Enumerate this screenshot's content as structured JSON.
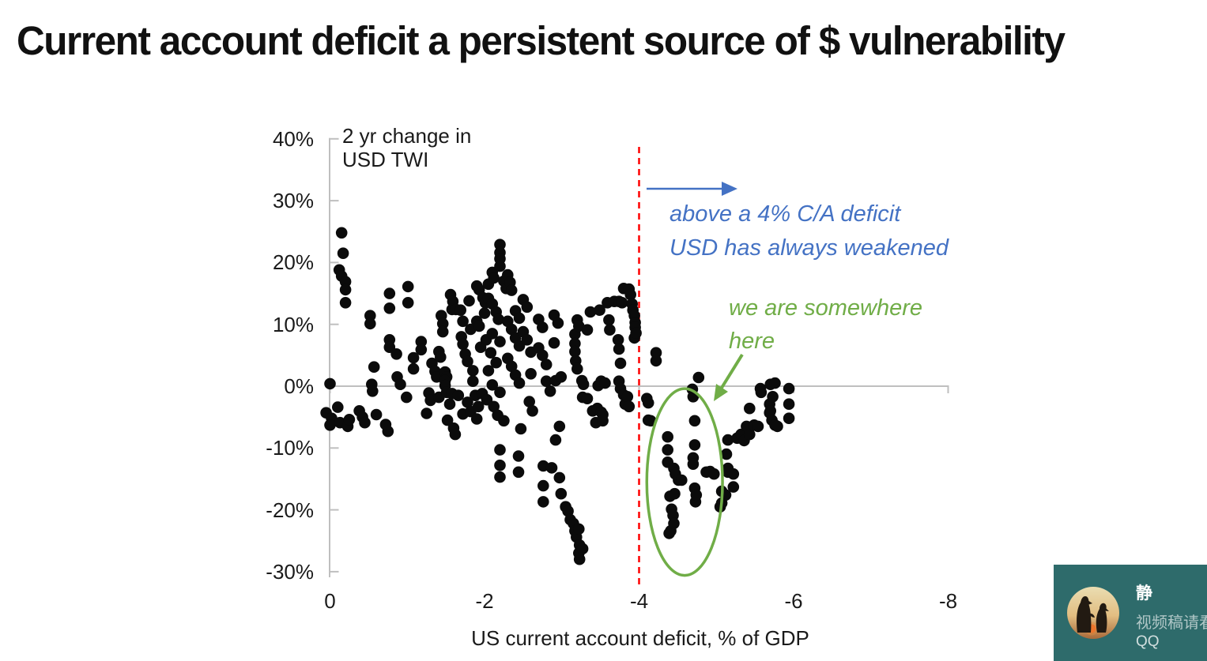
{
  "title": "Current account deficit a persistent source of $ vulnerability",
  "colors": {
    "accent_blue": "#4472C4",
    "accent_green": "#70AD47",
    "reference_red": "#FF0000",
    "axis_gray": "#BFBFBF",
    "point_black": "#0B0B0B",
    "overlay_teal": "#2E6B6B"
  },
  "chart_data": {
    "type": "scatter",
    "title": "",
    "ylabel": "2 yr change in\nUSD TWI",
    "ylabel_line1": "2 yr change in",
    "ylabel_line2": "USD TWI",
    "xlabel": "US current account deficit, % of GDP",
    "xlim": [
      0,
      -8
    ],
    "ylim": [
      40,
      -30
    ],
    "grid": false,
    "legend": "none",
    "x_ticks": [
      0,
      -2,
      -4,
      -6,
      -8
    ],
    "y_tick_labels": [
      "40%",
      "30%",
      "20%",
      "10%",
      "0%",
      "-10%",
      "-20%",
      "-30%"
    ],
    "y_tick_values": [
      40,
      30,
      20,
      10,
      0,
      -10,
      -20,
      -30
    ],
    "reference_line": {
      "x": -4,
      "color": "#FF0000",
      "style": "dashed"
    },
    "highlight_ellipse": {
      "cx": -4.59,
      "cy": -15.5,
      "rx": 0.49,
      "ry": 15.1,
      "color": "#70AD47"
    },
    "points": [
      [
        0.0,
        0.4
      ],
      [
        0.05,
        -4.3
      ],
      [
        -0.02,
        -5.2
      ],
      [
        0.0,
        -6.3
      ],
      [
        -0.1,
        -3.4
      ],
      [
        -0.13,
        -5.9
      ],
      [
        -0.15,
        24.8
      ],
      [
        -0.17,
        21.5
      ],
      [
        -0.12,
        18.8
      ],
      [
        -0.15,
        17.8
      ],
      [
        -0.2,
        16.9
      ],
      [
        -0.2,
        15.6
      ],
      [
        -0.2,
        13.5
      ],
      [
        -0.23,
        -6.5
      ],
      [
        -0.25,
        -5.4
      ],
      [
        -0.38,
        -4.0
      ],
      [
        -0.42,
        -5.0
      ],
      [
        -0.45,
        -5.9
      ],
      [
        -0.52,
        11.4
      ],
      [
        -0.52,
        10.1
      ],
      [
        -0.54,
        0.3
      ],
      [
        -0.55,
        -0.8
      ],
      [
        -0.57,
        3.1
      ],
      [
        -0.6,
        -4.6
      ],
      [
        -0.72,
        -6.2
      ],
      [
        -0.75,
        -7.3
      ],
      [
        -0.77,
        15.0
      ],
      [
        -0.77,
        12.6
      ],
      [
        -0.77,
        7.5
      ],
      [
        -0.77,
        6.3
      ],
      [
        -0.86,
        5.2
      ],
      [
        -0.87,
        1.5
      ],
      [
        -0.91,
        0.3
      ],
      [
        -0.99,
        -1.8
      ],
      [
        -1.01,
        16.1
      ],
      [
        -1.01,
        13.5
      ],
      [
        -1.08,
        4.6
      ],
      [
        -1.08,
        2.8
      ],
      [
        -1.18,
        7.2
      ],
      [
        -1.18,
        5.9
      ],
      [
        -1.25,
        -4.4
      ],
      [
        -1.28,
        -1.1
      ],
      [
        -1.3,
        -2.3
      ],
      [
        -1.32,
        3.7
      ],
      [
        -1.36,
        2.4
      ],
      [
        -1.38,
        1.5
      ],
      [
        -1.41,
        5.6
      ],
      [
        -1.43,
        4.7
      ],
      [
        -1.41,
        -1.8
      ],
      [
        -1.44,
        11.4
      ],
      [
        -1.46,
        10.1
      ],
      [
        -1.46,
        8.8
      ],
      [
        -1.49,
        2.3
      ],
      [
        -1.51,
        1.5
      ],
      [
        -1.49,
        0.9
      ],
      [
        -1.49,
        0.1
      ],
      [
        -1.51,
        -1.0
      ],
      [
        -1.52,
        -5.5
      ],
      [
        -1.55,
        -2.9
      ],
      [
        -1.56,
        14.8
      ],
      [
        -1.58,
        12.4
      ],
      [
        -1.59,
        13.7
      ],
      [
        -1.58,
        -1.2
      ],
      [
        -1.6,
        -6.8
      ],
      [
        -1.62,
        -7.8
      ],
      [
        -1.63,
        12.4
      ],
      [
        -1.66,
        -1.5
      ],
      [
        -1.69,
        12.3
      ],
      [
        -1.7,
        8.0
      ],
      [
        -1.72,
        10.5
      ],
      [
        -1.72,
        6.8
      ],
      [
        -1.72,
        -4.5
      ],
      [
        -1.75,
        5.2
      ],
      [
        -1.78,
        4.0
      ],
      [
        -1.78,
        -2.6
      ],
      [
        -1.8,
        13.8
      ],
      [
        -1.82,
        9.2
      ],
      [
        -1.82,
        -4.1
      ],
      [
        -1.85,
        2.5
      ],
      [
        -1.85,
        0.8
      ],
      [
        -1.88,
        -1.5
      ],
      [
        -1.9,
        16.2
      ],
      [
        -1.9,
        10.5
      ],
      [
        -1.9,
        -5.3
      ],
      [
        -1.92,
        -3.3
      ],
      [
        -1.93,
        15.6
      ],
      [
        -1.93,
        9.7
      ],
      [
        -1.95,
        6.3
      ],
      [
        -1.97,
        -1.2
      ],
      [
        -1.98,
        14.3
      ],
      [
        -2.0,
        11.8
      ],
      [
        -2.01,
        13.5
      ],
      [
        -2.02,
        7.5
      ],
      [
        -2.03,
        -2.2
      ],
      [
        -2.05,
        16.5
      ],
      [
        -2.05,
        14.2
      ],
      [
        -2.05,
        2.5
      ],
      [
        -2.08,
        5.4
      ],
      [
        -2.1,
        18.4
      ],
      [
        -2.1,
        13.3
      ],
      [
        -2.1,
        8.5
      ],
      [
        -2.1,
        0.2
      ],
      [
        -2.12,
        17.5
      ],
      [
        -2.12,
        -3.3
      ],
      [
        -2.15,
        12.0
      ],
      [
        -2.15,
        3.8
      ],
      [
        -2.17,
        -4.7
      ],
      [
        -2.18,
        10.8
      ],
      [
        -2.2,
        22.9
      ],
      [
        -2.2,
        21.6
      ],
      [
        -2.2,
        20.6
      ],
      [
        -2.2,
        19.4
      ],
      [
        -2.2,
        7.2
      ],
      [
        -2.2,
        -1.0
      ],
      [
        -2.2,
        -10.3
      ],
      [
        -2.2,
        -12.8
      ],
      [
        -2.2,
        -14.7
      ],
      [
        -2.25,
        17.0
      ],
      [
        -2.25,
        -5.6
      ],
      [
        -2.28,
        15.8
      ],
      [
        -2.3,
        18.0
      ],
      [
        -2.3,
        10.5
      ],
      [
        -2.3,
        4.5
      ],
      [
        -2.33,
        16.8
      ],
      [
        -2.35,
        15.5
      ],
      [
        -2.35,
        9.2
      ],
      [
        -2.35,
        3.2
      ],
      [
        -2.4,
        12.2
      ],
      [
        -2.4,
        7.8
      ],
      [
        -2.4,
        1.8
      ],
      [
        -2.44,
        -11.3
      ],
      [
        -2.44,
        -13.9
      ],
      [
        -2.45,
        11.0
      ],
      [
        -2.45,
        6.5
      ],
      [
        -2.45,
        0.5
      ],
      [
        -2.47,
        -6.9
      ],
      [
        -2.5,
        14.0
      ],
      [
        -2.5,
        8.8
      ],
      [
        -2.55,
        12.8
      ],
      [
        -2.55,
        7.5
      ],
      [
        -2.58,
        -2.5
      ],
      [
        -2.6,
        5.5
      ],
      [
        -2.6,
        2.0
      ],
      [
        -2.62,
        -4.0
      ],
      [
        -2.7,
        10.8
      ],
      [
        -2.7,
        6.2
      ],
      [
        -2.75,
        9.5
      ],
      [
        -2.75,
        5.0
      ],
      [
        -2.76,
        -12.9
      ],
      [
        -2.76,
        -16.1
      ],
      [
        -2.76,
        -18.7
      ],
      [
        -2.8,
        3.5
      ],
      [
        -2.8,
        0.8
      ],
      [
        -2.85,
        -0.8
      ],
      [
        -2.87,
        -13.2
      ],
      [
        -2.9,
        11.5
      ],
      [
        -2.9,
        7.0
      ],
      [
        -2.92,
        0.9
      ],
      [
        -2.92,
        -8.7
      ],
      [
        -2.95,
        10.2
      ],
      [
        -2.97,
        -6.5
      ],
      [
        -2.97,
        -14.8
      ],
      [
        -2.99,
        1.5
      ],
      [
        -2.99,
        -17.4
      ],
      [
        -3.05,
        -19.5
      ],
      [
        -3.08,
        -20.2
      ],
      [
        -3.11,
        -21.6
      ],
      [
        -3.15,
        -22.2
      ],
      [
        -3.17,
        -23.4
      ],
      [
        -3.19,
        -24.4
      ],
      [
        -3.22,
        -23.1
      ],
      [
        -3.22,
        -27.0
      ],
      [
        -3.23,
        -25.7
      ],
      [
        -3.23,
        -28.0
      ],
      [
        -3.27,
        -26.3
      ],
      [
        -3.17,
        8.4
      ],
      [
        -3.17,
        6.9
      ],
      [
        -3.17,
        5.6
      ],
      [
        -3.18,
        4.1
      ],
      [
        -3.2,
        2.8
      ],
      [
        -3.2,
        10.7
      ],
      [
        -3.22,
        9.7
      ],
      [
        -3.26,
        0.9
      ],
      [
        -3.27,
        -1.8
      ],
      [
        -3.28,
        0.3
      ],
      [
        -3.33,
        9.1
      ],
      [
        -3.33,
        -2.0
      ],
      [
        -3.37,
        12.0
      ],
      [
        -3.4,
        -4.0
      ],
      [
        -3.44,
        -5.9
      ],
      [
        -3.46,
        -3.6
      ],
      [
        -3.47,
        0.1
      ],
      [
        -3.49,
        12.3
      ],
      [
        -3.51,
        0.8
      ],
      [
        -3.51,
        -4.2
      ],
      [
        -3.53,
        -4.6
      ],
      [
        -3.53,
        -5.6
      ],
      [
        -3.56,
        0.5
      ],
      [
        -3.59,
        13.5
      ],
      [
        -3.61,
        10.7
      ],
      [
        -3.62,
        9.1
      ],
      [
        -3.68,
        13.7
      ],
      [
        -3.73,
        7.5
      ],
      [
        -3.74,
        13.7
      ],
      [
        -3.74,
        6.0
      ],
      [
        -3.74,
        0.8
      ],
      [
        -3.76,
        3.7
      ],
      [
        -3.76,
        -0.4
      ],
      [
        -3.78,
        13.5
      ],
      [
        -3.8,
        15.8
      ],
      [
        -3.8,
        -1.4
      ],
      [
        -3.82,
        -2.9
      ],
      [
        -3.85,
        -1.7
      ],
      [
        -3.87,
        15.7
      ],
      [
        -3.87,
        -3.3
      ],
      [
        -3.89,
        14.8
      ],
      [
        -3.91,
        13.3
      ],
      [
        -3.92,
        12.3
      ],
      [
        -3.94,
        11.4
      ],
      [
        -3.94,
        7.8
      ],
      [
        -3.95,
        10.3
      ],
      [
        -3.95,
        9.5
      ],
      [
        -3.96,
        8.6
      ],
      [
        -4.1,
        -2.0
      ],
      [
        -4.12,
        -2.7
      ],
      [
        -4.12,
        -5.5
      ],
      [
        -4.15,
        -5.6
      ],
      [
        -4.22,
        5.4
      ],
      [
        -4.22,
        4.1
      ],
      [
        -4.37,
        -8.2
      ],
      [
        -4.37,
        -10.3
      ],
      [
        -4.37,
        -12.3
      ],
      [
        -4.39,
        -23.8
      ],
      [
        -4.4,
        -17.8
      ],
      [
        -4.41,
        -23.4
      ],
      [
        -4.42,
        -19.9
      ],
      [
        -4.44,
        -20.9
      ],
      [
        -4.45,
        -13.3
      ],
      [
        -4.45,
        -22.2
      ],
      [
        -4.46,
        -17.4
      ],
      [
        -4.47,
        -14.2
      ],
      [
        -4.51,
        -15.2
      ],
      [
        -4.55,
        -15.2
      ],
      [
        -4.69,
        -0.5
      ],
      [
        -4.7,
        -1.7
      ],
      [
        -4.7,
        -11.6
      ],
      [
        -4.7,
        -12.6
      ],
      [
        -4.72,
        -5.6
      ],
      [
        -4.72,
        -9.5
      ],
      [
        -4.72,
        -16.5
      ],
      [
        -4.73,
        -18.7
      ],
      [
        -4.74,
        -17.6
      ],
      [
        -4.77,
        1.4
      ],
      [
        -4.87,
        -13.9
      ],
      [
        -4.92,
        -13.8
      ],
      [
        -4.97,
        -14.2
      ],
      [
        -5.05,
        -19.5
      ],
      [
        -5.07,
        -18.9
      ],
      [
        -5.07,
        -17.0
      ],
      [
        -5.12,
        -17.6
      ],
      [
        -5.13,
        -11.0
      ],
      [
        -5.15,
        -13.9
      ],
      [
        -5.15,
        -13.3
      ],
      [
        -5.15,
        -8.7
      ],
      [
        -5.22,
        -16.3
      ],
      [
        -5.22,
        -14.2
      ],
      [
        -5.27,
        -8.4
      ],
      [
        -5.32,
        -7.8
      ],
      [
        -5.36,
        -8.8
      ],
      [
        -5.39,
        -6.5
      ],
      [
        -5.43,
        -7.8
      ],
      [
        -5.43,
        -3.6
      ],
      [
        -5.49,
        -6.3
      ],
      [
        -5.54,
        -6.5
      ],
      [
        -5.57,
        -0.4
      ],
      [
        -5.58,
        -1.0
      ],
      [
        -5.69,
        -2.9
      ],
      [
        -5.69,
        -4.3
      ],
      [
        -5.7,
        0.3
      ],
      [
        -5.7,
        -4.0
      ],
      [
        -5.72,
        -5.5
      ],
      [
        -5.73,
        -1.7
      ],
      [
        -5.76,
        0.5
      ],
      [
        -5.76,
        -6.3
      ],
      [
        -5.79,
        -6.5
      ],
      [
        -5.94,
        -0.4
      ],
      [
        -5.94,
        -2.9
      ],
      [
        -5.94,
        -5.2
      ]
    ]
  },
  "annotations": {
    "blue": {
      "line1": "above a 4% C/A deficit",
      "line2": "USD has always weakened",
      "color": "#4472C4"
    },
    "green": {
      "line1": "we are somewhere",
      "line2": "here",
      "color": "#70AD47"
    }
  },
  "overlay": {
    "name": "静",
    "subtitle": "视频稿请看",
    "app": "QQ"
  }
}
